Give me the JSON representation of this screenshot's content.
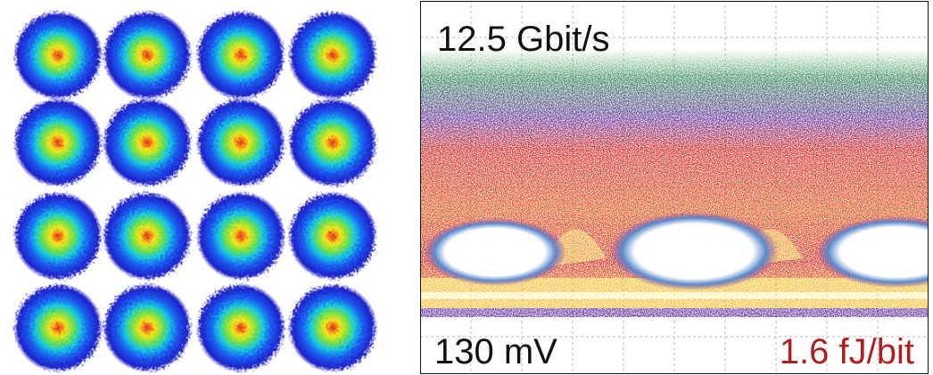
{
  "eye_diagram": {
    "rate_label": "12.5 Gbit/s",
    "voltage_label": "130 mV",
    "energy_label": "1.6 fJ/bit"
  }
}
